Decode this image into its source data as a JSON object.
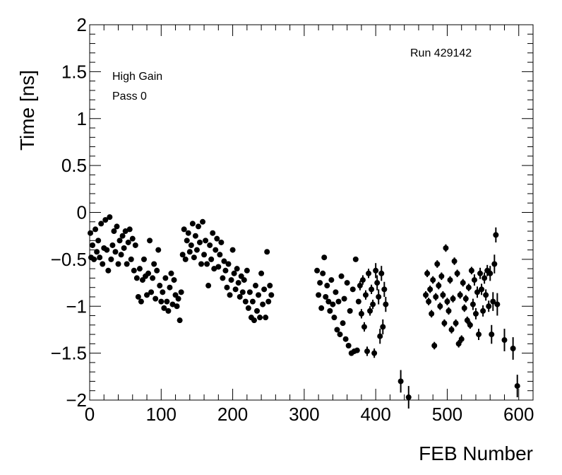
{
  "chart_data": {
    "type": "scatter",
    "title": "",
    "xlabel": "FEB Number",
    "ylabel": "Time [ns]",
    "xlim": [
      0,
      620
    ],
    "ylim": [
      -2,
      2
    ],
    "x_ticks": [
      "0",
      "100",
      "200",
      "300",
      "400",
      "500",
      "600"
    ],
    "y_ticks": [
      "−2",
      "−1.5",
      "−1",
      "−0.5",
      "0",
      "0.5",
      "1",
      "1.5",
      "2"
    ],
    "annotations": {
      "run": "Run 429142",
      "gain": "High Gain",
      "pass": "Pass 0"
    },
    "grid": false,
    "marker_color": "#000000",
    "series": [
      {
        "points": [
          [
            1,
            -0.22,
            0.02
          ],
          [
            2,
            -0.48,
            0.02
          ],
          [
            4,
            -0.35,
            0.02
          ],
          [
            6,
            -0.5,
            0.02
          ],
          [
            8,
            -0.18,
            0.02
          ],
          [
            10,
            -0.42,
            0.02
          ],
          [
            12,
            -0.3,
            0.02
          ],
          [
            14,
            -0.48,
            0.02
          ],
          [
            16,
            -0.12,
            0.02
          ],
          [
            18,
            -0.55,
            0.02
          ],
          [
            20,
            -0.38,
            0.02
          ],
          [
            22,
            -0.08,
            0.02
          ],
          [
            24,
            -0.4,
            0.02
          ],
          [
            26,
            -0.62,
            0.02
          ],
          [
            28,
            -0.05,
            0.02
          ],
          [
            30,
            -0.5,
            0.02
          ],
          [
            32,
            -0.35,
            0.02
          ],
          [
            34,
            -0.2,
            0.02
          ],
          [
            36,
            -0.42,
            0.02
          ],
          [
            38,
            -0.15,
            0.02
          ],
          [
            40,
            -0.55,
            0.02
          ],
          [
            42,
            -0.3,
            0.02
          ],
          [
            44,
            -0.45,
            0.02
          ],
          [
            46,
            -0.25,
            0.02
          ],
          [
            48,
            -0.38,
            0.02
          ],
          [
            50,
            -0.2,
            0.02
          ],
          [
            52,
            -0.55,
            0.02
          ],
          [
            54,
            -0.32,
            0.02
          ],
          [
            56,
            -0.18,
            0.02
          ],
          [
            58,
            -0.5,
            0.02
          ],
          [
            60,
            -0.28,
            0.02
          ],
          [
            62,
            -0.62,
            0.02
          ],
          [
            64,
            -0.35,
            0.02
          ],
          [
            66,
            -0.7,
            0.02
          ],
          [
            68,
            -0.9,
            0.02
          ],
          [
            70,
            -0.6,
            0.02
          ],
          [
            72,
            -0.95,
            0.02
          ],
          [
            74,
            -0.72,
            0.02
          ],
          [
            76,
            -0.5,
            0.02
          ],
          [
            78,
            -0.68,
            0.02
          ],
          [
            80,
            -0.88,
            0.02
          ],
          [
            82,
            -0.65,
            0.02
          ],
          [
            84,
            -0.3,
            0.02
          ],
          [
            86,
            -0.85,
            0.02
          ],
          [
            88,
            -0.7,
            0.02
          ],
          [
            90,
            -0.55,
            0.02
          ],
          [
            92,
            -0.92,
            0.02
          ],
          [
            94,
            -0.62,
            0.02
          ],
          [
            96,
            -0.4,
            0.02
          ],
          [
            98,
            -0.78,
            0.02
          ],
          [
            100,
            -0.95,
            0.02
          ],
          [
            102,
            -0.85,
            0.02
          ],
          [
            104,
            -1.02,
            0.02
          ],
          [
            106,
            -0.7,
            0.02
          ],
          [
            108,
            -0.95,
            0.02
          ],
          [
            110,
            -1.05,
            0.02
          ],
          [
            112,
            -0.8,
            0.02
          ],
          [
            114,
            -0.65,
            0.02
          ],
          [
            116,
            -0.98,
            0.02
          ],
          [
            118,
            -0.72,
            0.02
          ],
          [
            120,
            -0.88,
            0.02
          ],
          [
            122,
            -1.0,
            0.02
          ],
          [
            124,
            -0.92,
            0.02
          ],
          [
            126,
            -1.15,
            0.02
          ],
          [
            128,
            -0.85,
            0.02
          ],
          [
            130,
            -0.45,
            0.02
          ],
          [
            132,
            -0.18,
            0.02
          ],
          [
            134,
            -0.5,
            0.02
          ],
          [
            136,
            -0.3,
            0.02
          ],
          [
            138,
            -0.22,
            0.02
          ],
          [
            140,
            -0.42,
            0.02
          ],
          [
            142,
            -0.35,
            0.02
          ],
          [
            144,
            -0.12,
            0.02
          ],
          [
            146,
            -0.48,
            0.02
          ],
          [
            148,
            -0.25,
            0.02
          ],
          [
            150,
            -0.4,
            0.02
          ],
          [
            152,
            -0.15,
            0.02
          ],
          [
            154,
            -0.32,
            0.02
          ],
          [
            156,
            -0.55,
            0.02
          ],
          [
            158,
            -0.1,
            0.02
          ],
          [
            160,
            -0.45,
            0.02
          ],
          [
            162,
            -0.3,
            0.02
          ],
          [
            164,
            -0.55,
            0.02
          ],
          [
            166,
            -0.78,
            0.02
          ],
          [
            168,
            -0.35,
            0.02
          ],
          [
            170,
            -0.5,
            0.02
          ],
          [
            172,
            -0.22,
            0.02
          ],
          [
            174,
            -0.6,
            0.02
          ],
          [
            176,
            -0.4,
            0.02
          ],
          [
            178,
            -0.28,
            0.02
          ],
          [
            180,
            -0.58,
            0.02
          ],
          [
            182,
            -0.45,
            0.02
          ],
          [
            184,
            -0.32,
            0.02
          ],
          [
            186,
            -0.7,
            0.02
          ],
          [
            188,
            -0.52,
            0.02
          ],
          [
            190,
            -0.62,
            0.02
          ],
          [
            192,
            -0.8,
            0.02
          ],
          [
            194,
            -0.55,
            0.02
          ],
          [
            196,
            -0.88,
            0.02
          ],
          [
            198,
            -0.72,
            0.02
          ],
          [
            200,
            -0.4,
            0.02
          ],
          [
            202,
            -0.65,
            0.02
          ],
          [
            204,
            -0.82,
            0.02
          ],
          [
            206,
            -0.6,
            0.02
          ],
          [
            208,
            -0.75,
            0.02
          ],
          [
            210,
            -0.9,
            0.02
          ],
          [
            212,
            -0.68,
            0.02
          ],
          [
            214,
            -0.85,
            0.02
          ],
          [
            216,
            -0.72,
            0.02
          ],
          [
            218,
            -0.95,
            0.02
          ],
          [
            220,
            -0.62,
            0.02
          ],
          [
            222,
            -1.02,
            0.02
          ],
          [
            224,
            -0.85,
            0.02
          ],
          [
            226,
            -1.12,
            0.02
          ],
          [
            228,
            -0.95,
            0.02
          ],
          [
            230,
            -1.15,
            0.02
          ],
          [
            232,
            -0.78,
            0.02
          ],
          [
            234,
            -1.05,
            0.02
          ],
          [
            236,
            -0.88,
            0.02
          ],
          [
            238,
            -1.12,
            0.02
          ],
          [
            240,
            -0.65,
            0.02
          ],
          [
            242,
            -0.98,
            0.02
          ],
          [
            244,
            -0.82,
            0.02
          ],
          [
            246,
            -1.12,
            0.02
          ],
          [
            248,
            -0.42,
            0.02
          ],
          [
            250,
            -0.95,
            0.02
          ],
          [
            252,
            -0.78,
            0.02
          ],
          [
            254,
            -0.88,
            0.02
          ],
          [
            318,
            -0.62,
            0.02
          ],
          [
            320,
            -0.88,
            0.02
          ],
          [
            322,
            -0.75,
            0.02
          ],
          [
            324,
            -1.02,
            0.02
          ],
          [
            326,
            -0.65,
            0.02
          ],
          [
            328,
            -0.48,
            0.02
          ],
          [
            330,
            -0.9,
            0.02
          ],
          [
            332,
            -0.78,
            0.02
          ],
          [
            334,
            -0.95,
            0.02
          ],
          [
            336,
            -1.05,
            0.02
          ],
          [
            338,
            -0.72,
            0.02
          ],
          [
            340,
            -0.98,
            0.02
          ],
          [
            342,
            -1.12,
            0.02
          ],
          [
            344,
            -0.85,
            0.02
          ],
          [
            346,
            -1.25,
            0.02
          ],
          [
            348,
            -0.95,
            0.02
          ],
          [
            350,
            -1.3,
            0.02
          ],
          [
            352,
            -0.68,
            0.02
          ],
          [
            354,
            -1.18,
            0.02
          ],
          [
            356,
            -0.92,
            0.02
          ],
          [
            358,
            -1.35,
            0.02
          ],
          [
            360,
            -0.75,
            0.02
          ],
          [
            362,
            -1.42,
            0.02
          ],
          [
            364,
            -1.05,
            0.02
          ],
          [
            366,
            -1.5,
            0.02
          ],
          [
            368,
            -0.82,
            0.02
          ],
          [
            370,
            -1.48,
            0.02
          ],
          [
            372,
            -0.5,
            0.02
          ],
          [
            374,
            -1.47,
            0.02
          ],
          [
            376,
            -0.95,
            0.02
          ],
          [
            378,
            -0.78,
            0.05
          ],
          [
            380,
            -1.08,
            0.05
          ],
          [
            382,
            -0.72,
            0.05
          ],
          [
            384,
            -1.22,
            0.05
          ],
          [
            386,
            -0.88,
            0.05
          ],
          [
            388,
            -1.48,
            0.05
          ],
          [
            390,
            -0.65,
            0.05
          ],
          [
            392,
            -1.05,
            0.05
          ],
          [
            394,
            -0.82,
            0.05
          ],
          [
            396,
            -0.98,
            0.05
          ],
          [
            398,
            -1.5,
            0.05
          ],
          [
            400,
            -0.62,
            0.08
          ],
          [
            402,
            -0.75,
            0.08
          ],
          [
            404,
            -0.9,
            0.08
          ],
          [
            406,
            -1.32,
            0.08
          ],
          [
            408,
            -0.65,
            0.08
          ],
          [
            410,
            -1.22,
            0.08
          ],
          [
            412,
            -0.82,
            0.08
          ],
          [
            414,
            -0.98,
            0.08
          ],
          [
            435,
            -1.8,
            0.12
          ],
          [
            446,
            -1.97,
            0.12
          ],
          [
            470,
            -0.88,
            0.04
          ],
          [
            472,
            -0.65,
            0.04
          ],
          [
            474,
            -0.95,
            0.04
          ],
          [
            476,
            -0.82,
            0.04
          ],
          [
            478,
            -1.08,
            0.04
          ],
          [
            480,
            -0.72,
            0.04
          ],
          [
            482,
            -1.42,
            0.04
          ],
          [
            484,
            -0.9,
            0.04
          ],
          [
            486,
            -0.55,
            0.04
          ],
          [
            488,
            -0.78,
            0.04
          ],
          [
            490,
            -1.0,
            0.04
          ],
          [
            492,
            -0.68,
            0.04
          ],
          [
            494,
            -0.88,
            0.04
          ],
          [
            496,
            -1.18,
            0.04
          ],
          [
            498,
            -0.38,
            0.04
          ],
          [
            500,
            -0.95,
            0.04
          ],
          [
            502,
            -1.05,
            0.04
          ],
          [
            504,
            -0.72,
            0.04
          ],
          [
            506,
            -1.25,
            0.04
          ],
          [
            508,
            -0.92,
            0.04
          ],
          [
            510,
            -0.52,
            0.04
          ],
          [
            512,
            -1.18,
            0.04
          ],
          [
            514,
            -0.65,
            0.04
          ],
          [
            516,
            -1.4,
            0.04
          ],
          [
            518,
            -0.88,
            0.04
          ],
          [
            520,
            -1.35,
            0.04
          ],
          [
            522,
            -0.75,
            0.04
          ],
          [
            524,
            -1.02,
            0.04
          ],
          [
            526,
            -0.92,
            0.04
          ],
          [
            528,
            -1.15,
            0.04
          ],
          [
            530,
            -0.8,
            0.04
          ],
          [
            532,
            -1.2,
            0.04
          ],
          [
            534,
            -0.62,
            0.04
          ],
          [
            536,
            -0.98,
            0.06
          ],
          [
            538,
            -0.72,
            0.06
          ],
          [
            540,
            -1.08,
            0.06
          ],
          [
            542,
            -0.85,
            0.06
          ],
          [
            544,
            -1.3,
            0.06
          ],
          [
            546,
            -0.65,
            0.06
          ],
          [
            548,
            -0.82,
            0.06
          ],
          [
            550,
            -1.05,
            0.06
          ],
          [
            552,
            -0.7,
            0.06
          ],
          [
            554,
            -0.88,
            0.06
          ],
          [
            556,
            -0.62,
            0.06
          ],
          [
            558,
            -1.0,
            0.06
          ],
          [
            560,
            -0.65,
            0.08
          ],
          [
            562,
            -1.3,
            0.1
          ],
          [
            564,
            -0.95,
            0.1
          ],
          [
            566,
            -0.55,
            0.1
          ],
          [
            568,
            -0.24,
            0.08
          ],
          [
            570,
            -0.98,
            0.12
          ],
          [
            580,
            -1.36,
            0.12
          ],
          [
            592,
            -1.45,
            0.12
          ],
          [
            598,
            -1.85,
            0.12
          ]
        ]
      }
    ]
  }
}
